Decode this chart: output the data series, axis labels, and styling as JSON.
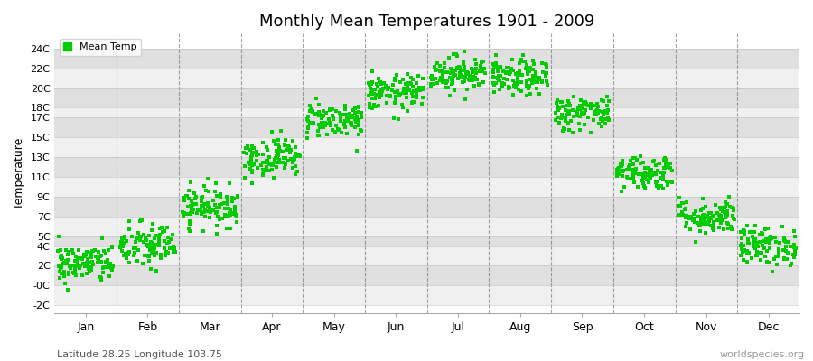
{
  "title": "Monthly Mean Temperatures 1901 - 2009",
  "subtitle": "Latitude 28.25 Longitude 103.75",
  "ylabel": "Temperature",
  "watermark": "worldspecies.org",
  "dot_color": "#00cc00",
  "dot_size": 5,
  "fig_bg": "#ffffff",
  "plot_bg_light": "#f0f0f0",
  "plot_bg_dark": "#e0e0e0",
  "yticks": [
    -2,
    0,
    2,
    4,
    5,
    7,
    9,
    11,
    13,
    15,
    17,
    18,
    20,
    22,
    24
  ],
  "ytick_labels": [
    "-2C",
    "-0C",
    "2C",
    "4C",
    "5C",
    "7C",
    "9C",
    "11C",
    "13C",
    "15C",
    "17C",
    "18C",
    "20C",
    "22C",
    "24C"
  ],
  "ylim": [
    -2.8,
    25.5
  ],
  "month_means": [
    2.2,
    4.0,
    8.0,
    13.0,
    16.8,
    19.5,
    21.5,
    21.0,
    17.5,
    11.5,
    7.0,
    4.0
  ],
  "month_stds": [
    1.0,
    1.2,
    1.0,
    1.0,
    0.9,
    0.9,
    0.9,
    0.9,
    0.9,
    0.9,
    0.9,
    1.0
  ],
  "months": [
    "Jan",
    "Feb",
    "Mar",
    "Apr",
    "May",
    "Jun",
    "Jul",
    "Aug",
    "Sep",
    "Oct",
    "Nov",
    "Dec"
  ],
  "n_years": 109,
  "legend_label": "Mean Temp",
  "vline_color": "#666666",
  "grid_color": "#bbbbbb"
}
